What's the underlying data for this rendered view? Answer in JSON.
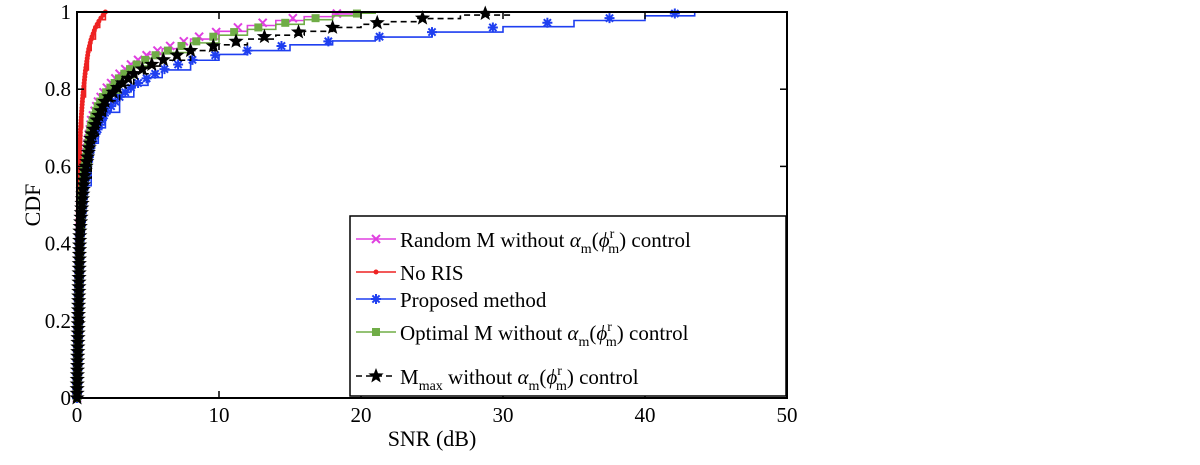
{
  "chart_data": {
    "type": "line",
    "title": "",
    "xlabel": "SNR (dB)",
    "ylabel": "CDF",
    "xlim": [
      0,
      50
    ],
    "ylim": [
      0,
      1
    ],
    "xticks": [
      "0",
      "10",
      "20",
      "30",
      "40",
      "50"
    ],
    "yticks": [
      "0",
      "0.2",
      "0.4",
      "0.6",
      "0.8",
      "1"
    ],
    "grid": false,
    "legend_placement": "bottom-right",
    "series": [
      {
        "name": "Random M without α_m(φ_m^r) control",
        "legend": {
          "pre": "Random M without ",
          "alpha": "α",
          "m1": "m",
          "phi": "ϕ",
          "r": "r",
          "m2": "m",
          "post": " control"
        },
        "color": "#e040e0",
        "marker": "x",
        "tail": 19.5,
        "x": [
          0,
          0.2,
          0.5,
          1,
          1.5,
          2,
          3,
          4,
          5,
          6,
          8,
          10,
          12,
          14,
          16,
          18,
          19.5
        ],
        "y": [
          0,
          0.45,
          0.6,
          0.72,
          0.77,
          0.8,
          0.84,
          0.87,
          0.89,
          0.905,
          0.93,
          0.95,
          0.965,
          0.978,
          0.988,
          0.995,
          1.0
        ]
      },
      {
        "name": "No RIS",
        "legend": {
          "pre": "No RIS"
        },
        "color": "#ee2222",
        "marker": "dot",
        "tail": 2.0,
        "x": [
          0,
          0.1,
          0.25,
          0.4,
          0.6,
          0.8,
          1.0,
          1.3,
          1.6,
          2.0
        ],
        "y": [
          0,
          0.55,
          0.7,
          0.78,
          0.85,
          0.9,
          0.93,
          0.96,
          0.98,
          1.0
        ]
      },
      {
        "name": "Proposed method",
        "legend": {
          "pre": "Proposed method"
        },
        "color": "#1f3ff0",
        "marker": "asterisk",
        "tail": 43.5,
        "x": [
          0,
          0.2,
          0.5,
          1,
          1.5,
          2,
          3,
          4,
          5,
          6,
          8,
          10,
          12,
          15,
          18,
          21,
          25,
          30,
          35,
          40,
          43.5
        ],
        "y": [
          0,
          0.42,
          0.55,
          0.66,
          0.7,
          0.74,
          0.78,
          0.81,
          0.83,
          0.85,
          0.875,
          0.89,
          0.9,
          0.915,
          0.925,
          0.935,
          0.948,
          0.962,
          0.978,
          0.99,
          1.0
        ]
      },
      {
        "name": "Optimal M without α_m(φ_m^r) control",
        "legend": {
          "pre": "Optimal M without  ",
          "alpha": "α",
          "m1": "m",
          "phi": "ϕ",
          "r": "r",
          "m2": "m",
          "post": " control"
        },
        "color": "#70ad47",
        "marker": "square",
        "tail": 21.0,
        "x": [
          0,
          0.2,
          0.5,
          1,
          1.5,
          2,
          3,
          4,
          5,
          6,
          8,
          10,
          12,
          14,
          16,
          18,
          20,
          21
        ],
        "y": [
          0,
          0.44,
          0.59,
          0.71,
          0.76,
          0.79,
          0.83,
          0.86,
          0.88,
          0.895,
          0.92,
          0.94,
          0.955,
          0.968,
          0.98,
          0.99,
          0.997,
          1.0
        ]
      },
      {
        "name": "M_max without α_m(φ_m^r) control",
        "legend": {
          "pre": "M",
          "sub": "max",
          "mid": " without  ",
          "alpha": "α",
          "m1": "m",
          "phi": "ϕ",
          "r": "r",
          "m2": "m",
          "post": " control"
        },
        "color": "#000000",
        "marker": "star",
        "dashed": true,
        "tail": 30.5,
        "x": [
          0,
          0.2,
          0.5,
          1,
          1.5,
          2,
          3,
          4,
          5,
          6,
          8,
          10,
          12,
          14,
          16,
          18,
          20,
          22,
          24,
          27,
          30.5
        ],
        "y": [
          0,
          0.43,
          0.57,
          0.68,
          0.73,
          0.77,
          0.81,
          0.84,
          0.86,
          0.875,
          0.9,
          0.915,
          0.93,
          0.94,
          0.95,
          0.96,
          0.968,
          0.975,
          0.983,
          0.992,
          1.0
        ]
      }
    ]
  }
}
